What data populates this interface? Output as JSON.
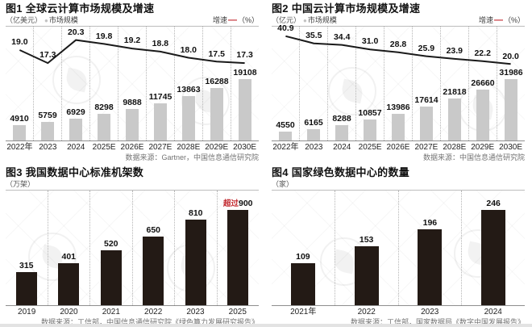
{
  "colors": {
    "bar_gray": "#c9c9c9",
    "bar_dark": "#231a15",
    "line_black": "#1a1a1a",
    "accent_red": "#c1272d",
    "source_gray": "#737373"
  },
  "chart_data": [
    {
      "type": "bar+line",
      "title": "图1 全球云计算市场规模及增速",
      "unit": "（亿美元）",
      "bar_legend": "市场规模",
      "line_legend": "增速",
      "line_unit": "（%）",
      "categories": [
        "2022年",
        "2023",
        "2024",
        "2025E",
        "2026E",
        "2027E",
        "2028E",
        "2029E",
        "2030E"
      ],
      "series": [
        {
          "name": "市场规模",
          "type": "bar",
          "values": [
            4910,
            5759,
            6929,
            8298,
            9888,
            11745,
            13863,
            16288,
            19108
          ]
        },
        {
          "name": "增速",
          "type": "line",
          "values": [
            19.0,
            17.3,
            20.3,
            19.8,
            19.2,
            18.8,
            18.0,
            17.5,
            17.3
          ]
        }
      ],
      "line_axis": {
        "min": 17,
        "max": 21
      },
      "grid": "dotted-vertical",
      "legend_position": "top",
      "source": "数据来源：Gartner，中国信息通信研究院"
    },
    {
      "type": "bar+line",
      "title": "图2 中国云计算市场规模及增速",
      "unit": "（亿元）",
      "bar_legend": "市场规模",
      "line_legend": "增速",
      "line_unit": "（%）",
      "categories": [
        "2022年",
        "2023",
        "2024",
        "2025E",
        "2026E",
        "2027E",
        "2028E",
        "2029E",
        "2030E"
      ],
      "series": [
        {
          "name": "市场规模",
          "type": "bar",
          "values": [
            4550,
            6165,
            8288,
            10857,
            13986,
            17614,
            21818,
            26660,
            31986
          ]
        },
        {
          "name": "增速",
          "type": "line",
          "values": [
            40.9,
            35.5,
            34.4,
            31.0,
            28.8,
            25.9,
            23.9,
            22.2,
            20.0
          ]
        }
      ],
      "line_axis": {
        "min": 19,
        "max": 42
      },
      "grid": "dotted-vertical",
      "legend_position": "top",
      "source": "数据来源：中国信息通信研究院"
    },
    {
      "type": "bar",
      "title": "图3 我国数据中心标准机架数",
      "unit": "（万架）",
      "categories": [
        "2019",
        "2020",
        "2021",
        "2022",
        "2023",
        "2025"
      ],
      "values": [
        315,
        401,
        520,
        650,
        810,
        900
      ],
      "value_labels": [
        "315",
        "401",
        "520",
        "650",
        "810",
        {
          "prefix": "超过",
          "text": "900"
        }
      ],
      "grid": "dotted-vertical",
      "source": "数据来源：工信部，中国信息通信研究院《绿色算力发展研究报告》"
    },
    {
      "type": "bar",
      "title": "图4 国家绿色数据中心的数量",
      "unit": "（家）",
      "categories": [
        "2021年",
        "2022",
        "2023",
        "2024"
      ],
      "values": [
        109,
        153,
        196,
        246
      ],
      "grid": "dotted-vertical",
      "source": "数据来源：工信部，国家数据局《数字中国发展报告》"
    }
  ]
}
